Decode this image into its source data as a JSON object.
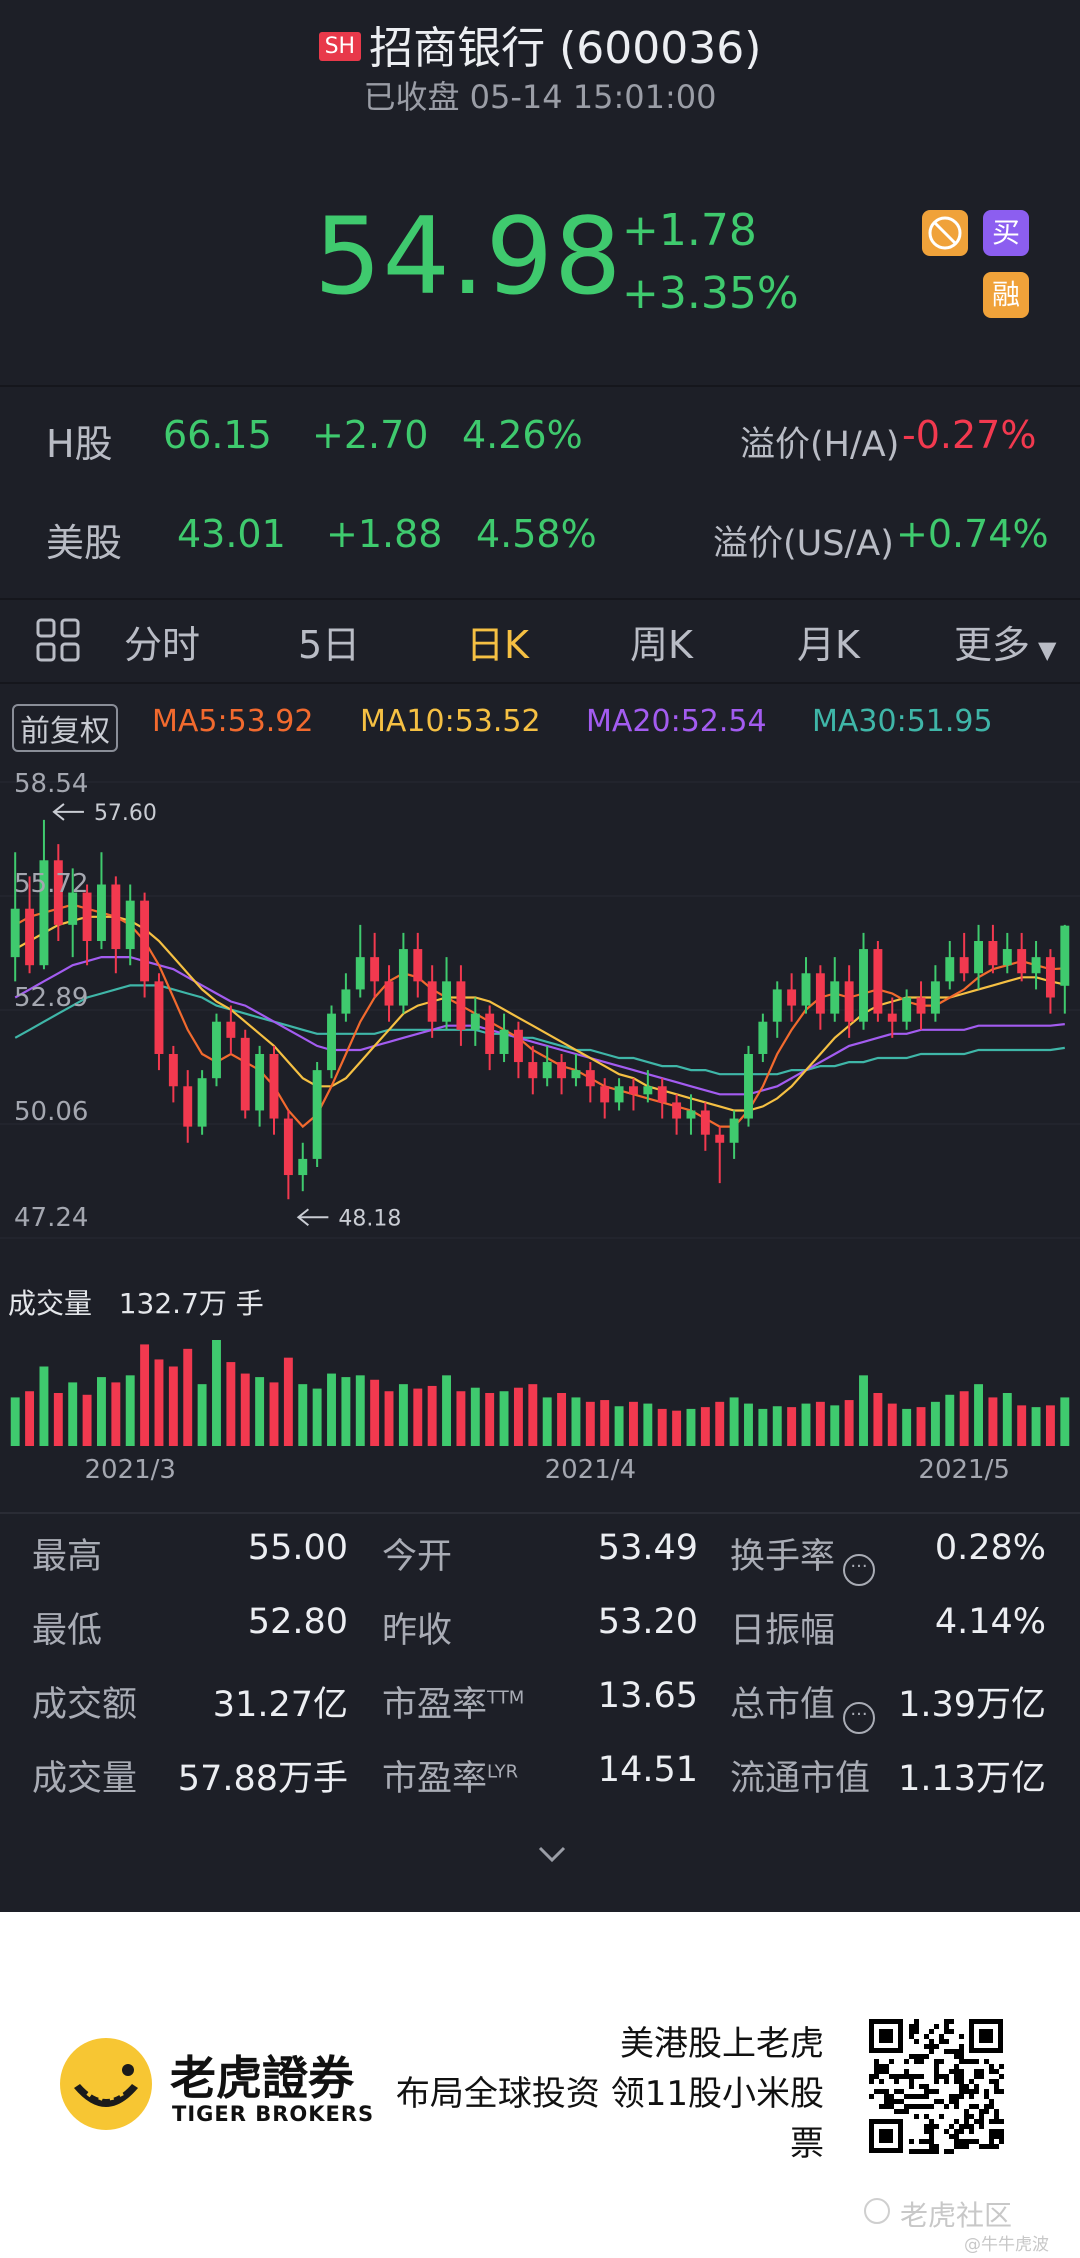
{
  "header": {
    "exchange_badge": "SH",
    "title": "招商银行 (600036)",
    "status": "已收盘 05-14 15:01:00",
    "price": "54.98",
    "change": "+1.78",
    "change_pct": "+3.35%",
    "buttons": {
      "no_short": "空",
      "buy": "买",
      "margin": "融"
    }
  },
  "linked": [
    {
      "market": "H股",
      "price": "66.15",
      "change": "+2.70",
      "pct": "4.26%",
      "premium_label": "溢价(H/A)",
      "premium": "-0.27%"
    },
    {
      "market": "美股",
      "price": "43.01",
      "change": "+1.88",
      "pct": "4.58%",
      "premium_label": "溢价(US/A)",
      "premium": "+0.74%"
    }
  ],
  "tabs": {
    "intraday": "分时",
    "five_day": "5日",
    "daily": "日K",
    "weekly": "周K",
    "monthly": "月K",
    "more": "更多"
  },
  "ma": {
    "adjust": "前复权",
    "ma5": "MA5:53.92",
    "ma10": "MA10:53.52",
    "ma20": "MA20:52.54",
    "ma30": "MA30:51.95",
    "colors": {
      "ma5": "#f26a2e",
      "ma10": "#f5c043",
      "ma20": "#a35cf0",
      "ma30": "#3fb6a8"
    }
  },
  "chart_data": {
    "type": "candlestick",
    "y_ticks": [
      "58.54",
      "55.72",
      "52.89",
      "50.06",
      "47.24"
    ],
    "ylim": [
      47.24,
      58.54
    ],
    "high_marker": "57.60",
    "low_marker": "48.18",
    "x_ticks": [
      "2021/3",
      "2021/4",
      "2021/5"
    ],
    "candles": [
      [
        54.2,
        55.4,
        56.8,
        53.6
      ],
      [
        55.4,
        54.0,
        56.2,
        53.8
      ],
      [
        54.0,
        56.6,
        57.6,
        53.9
      ],
      [
        56.6,
        55.0,
        57.0,
        54.6
      ],
      [
        55.0,
        55.8,
        56.4,
        54.2
      ],
      [
        55.8,
        54.6,
        56.0,
        54.0
      ],
      [
        54.6,
        56.0,
        56.8,
        54.4
      ],
      [
        56.0,
        54.4,
        56.2,
        53.8
      ],
      [
        54.4,
        55.6,
        56.0,
        54.0
      ],
      [
        55.6,
        53.6,
        55.8,
        53.2
      ],
      [
        53.6,
        51.8,
        53.8,
        51.4
      ],
      [
        51.8,
        51.0,
        52.0,
        50.6
      ],
      [
        51.0,
        50.0,
        51.4,
        49.6
      ],
      [
        50.0,
        51.2,
        51.4,
        49.8
      ],
      [
        51.2,
        52.6,
        52.8,
        51.0
      ],
      [
        52.6,
        52.2,
        53.0,
        51.8
      ],
      [
        52.2,
        50.4,
        52.4,
        50.2
      ],
      [
        50.4,
        51.8,
        52.0,
        50.0
      ],
      [
        51.8,
        50.2,
        52.0,
        49.8
      ],
      [
        50.2,
        48.8,
        50.4,
        48.2
      ],
      [
        48.8,
        49.2,
        49.6,
        48.4
      ],
      [
        49.2,
        51.4,
        51.6,
        49.0
      ],
      [
        51.4,
        52.8,
        53.0,
        51.2
      ],
      [
        52.8,
        53.4,
        53.8,
        52.6
      ],
      [
        53.4,
        54.2,
        55.0,
        53.2
      ],
      [
        54.2,
        53.6,
        54.8,
        53.2
      ],
      [
        53.6,
        53.0,
        54.0,
        52.6
      ],
      [
        53.0,
        54.4,
        54.8,
        52.8
      ],
      [
        54.4,
        53.6,
        54.8,
        53.2
      ],
      [
        53.6,
        52.6,
        54.0,
        52.2
      ],
      [
        52.6,
        53.6,
        54.2,
        52.4
      ],
      [
        53.6,
        52.4,
        54.0,
        52.0
      ],
      [
        52.4,
        52.8,
        53.2,
        52.0
      ],
      [
        52.8,
        51.8,
        53.0,
        51.4
      ],
      [
        51.8,
        52.4,
        52.8,
        51.6
      ],
      [
        52.4,
        51.6,
        52.6,
        51.2
      ],
      [
        51.6,
        51.2,
        52.0,
        50.8
      ],
      [
        51.2,
        51.6,
        52.0,
        51.0
      ],
      [
        51.6,
        51.2,
        51.8,
        50.8
      ],
      [
        51.2,
        51.4,
        51.8,
        51.0
      ],
      [
        51.4,
        51.0,
        51.6,
        50.6
      ],
      [
        51.0,
        50.6,
        51.2,
        50.2
      ],
      [
        50.6,
        51.0,
        51.2,
        50.4
      ],
      [
        51.0,
        50.8,
        51.2,
        50.4
      ],
      [
        50.8,
        51.0,
        51.4,
        50.6
      ],
      [
        51.0,
        50.6,
        51.2,
        50.2
      ],
      [
        50.6,
        50.2,
        50.8,
        49.8
      ],
      [
        50.2,
        50.4,
        50.8,
        49.8
      ],
      [
        50.4,
        49.8,
        50.6,
        49.4
      ],
      [
        49.8,
        49.6,
        50.0,
        48.6
      ],
      [
        49.6,
        50.2,
        50.4,
        49.2
      ],
      [
        50.2,
        51.8,
        52.0,
        50.0
      ],
      [
        51.8,
        52.6,
        52.8,
        51.6
      ],
      [
        52.6,
        53.4,
        53.6,
        52.2
      ],
      [
        53.4,
        53.0,
        53.8,
        52.6
      ],
      [
        53.0,
        53.8,
        54.2,
        52.8
      ],
      [
        53.8,
        52.8,
        54.0,
        52.4
      ],
      [
        52.8,
        53.6,
        54.2,
        52.6
      ],
      [
        53.6,
        52.6,
        54.0,
        52.2
      ],
      [
        52.6,
        54.4,
        54.8,
        52.4
      ],
      [
        54.4,
        52.8,
        54.6,
        52.6
      ],
      [
        52.8,
        52.6,
        53.2,
        52.2
      ],
      [
        52.6,
        53.2,
        53.4,
        52.4
      ],
      [
        53.2,
        52.8,
        53.6,
        52.4
      ],
      [
        52.8,
        53.6,
        54.0,
        52.6
      ],
      [
        53.6,
        54.2,
        54.6,
        53.4
      ],
      [
        54.2,
        53.8,
        54.8,
        53.6
      ],
      [
        53.8,
        54.6,
        55.0,
        53.4
      ],
      [
        54.6,
        54.0,
        55.0,
        53.8
      ],
      [
        54.0,
        54.4,
        54.8,
        53.8
      ],
      [
        54.4,
        53.8,
        54.8,
        53.6
      ],
      [
        53.8,
        54.2,
        54.6,
        53.4
      ],
      [
        54.2,
        53.2,
        54.4,
        52.8
      ],
      [
        53.49,
        54.98,
        55.0,
        52.8
      ]
    ],
    "ma5": [
      55.0,
      55.2,
      55.3,
      55.4,
      55.5,
      55.4,
      55.3,
      55.2,
      55.0,
      54.6,
      54.0,
      53.2,
      52.4,
      51.8,
      51.6,
      51.8,
      51.6,
      51.4,
      51.0,
      50.4,
      50.0,
      50.3,
      51.0,
      51.8,
      52.6,
      53.2,
      53.6,
      53.8,
      53.7,
      53.4,
      53.2,
      53.0,
      52.8,
      52.6,
      52.4,
      52.2,
      51.9,
      51.7,
      51.5,
      51.4,
      51.2,
      51.0,
      50.9,
      50.8,
      50.7,
      50.6,
      50.5,
      50.4,
      50.2,
      50.0,
      50.0,
      50.4,
      51.0,
      51.8,
      52.4,
      52.9,
      53.2,
      53.3,
      53.2,
      53.3,
      53.4,
      53.3,
      53.1,
      53.0,
      53.0,
      53.2,
      53.4,
      53.7,
      53.9,
      54.0,
      54.1,
      54.0,
      53.9,
      53.92
    ],
    "ma10": [
      54.4,
      54.6,
      54.8,
      55.0,
      55.1,
      55.2,
      55.2,
      55.2,
      55.1,
      54.9,
      54.6,
      54.2,
      53.8,
      53.4,
      53.1,
      52.9,
      52.6,
      52.3,
      52.0,
      51.6,
      51.2,
      51.0,
      51.0,
      51.2,
      51.6,
      52.0,
      52.4,
      52.8,
      53.0,
      53.1,
      53.2,
      53.2,
      53.2,
      53.1,
      52.9,
      52.7,
      52.5,
      52.3,
      52.1,
      51.9,
      51.7,
      51.5,
      51.3,
      51.2,
      51.0,
      50.9,
      50.8,
      50.7,
      50.6,
      50.5,
      50.4,
      50.4,
      50.5,
      50.7,
      51.0,
      51.4,
      51.8,
      52.2,
      52.5,
      52.8,
      53.0,
      53.1,
      53.2,
      53.2,
      53.2,
      53.2,
      53.3,
      53.4,
      53.5,
      53.6,
      53.7,
      53.7,
      53.6,
      53.52
    ],
    "ma20": [
      53.2,
      53.4,
      53.6,
      53.8,
      54.0,
      54.1,
      54.2,
      54.2,
      54.2,
      54.1,
      54.0,
      53.9,
      53.7,
      53.5,
      53.3,
      53.1,
      53.0,
      52.8,
      52.6,
      52.4,
      52.2,
      52.0,
      51.9,
      51.9,
      51.9,
      52.0,
      52.1,
      52.2,
      52.3,
      52.4,
      52.5,
      52.5,
      52.5,
      52.4,
      52.3,
      52.2,
      52.1,
      52.0,
      51.9,
      51.8,
      51.7,
      51.6,
      51.5,
      51.4,
      51.3,
      51.2,
      51.1,
      51.0,
      50.9,
      50.8,
      50.8,
      50.8,
      50.9,
      51.0,
      51.2,
      51.4,
      51.6,
      51.8,
      52.0,
      52.1,
      52.2,
      52.3,
      52.3,
      52.4,
      52.4,
      52.4,
      52.4,
      52.5,
      52.5,
      52.5,
      52.5,
      52.5,
      52.5,
      52.54
    ],
    "ma30": [
      52.2,
      52.4,
      52.6,
      52.8,
      53.0,
      53.2,
      53.3,
      53.4,
      53.5,
      53.5,
      53.5,
      53.4,
      53.3,
      53.2,
      53.0,
      52.9,
      52.8,
      52.7,
      52.6,
      52.5,
      52.4,
      52.3,
      52.3,
      52.3,
      52.3,
      52.3,
      52.4,
      52.4,
      52.4,
      52.4,
      52.4,
      52.4,
      52.4,
      52.3,
      52.3,
      52.2,
      52.2,
      52.1,
      52.0,
      51.9,
      51.9,
      51.8,
      51.7,
      51.7,
      51.6,
      51.5,
      51.5,
      51.4,
      51.4,
      51.3,
      51.3,
      51.3,
      51.3,
      51.3,
      51.4,
      51.4,
      51.5,
      51.5,
      51.6,
      51.6,
      51.7,
      51.7,
      51.7,
      51.8,
      51.8,
      51.8,
      51.8,
      51.9,
      51.9,
      51.9,
      51.9,
      51.9,
      51.9,
      51.95
    ],
    "volume": [
      0.55,
      0.62,
      0.9,
      0.6,
      0.72,
      0.58,
      0.78,
      0.72,
      0.8,
      1.15,
      0.98,
      0.9,
      1.1,
      0.7,
      1.2,
      0.95,
      0.82,
      0.78,
      0.72,
      1.0,
      0.7,
      0.65,
      0.82,
      0.78,
      0.8,
      0.75,
      0.62,
      0.7,
      0.65,
      0.68,
      0.8,
      0.62,
      0.66,
      0.6,
      0.62,
      0.66,
      0.7,
      0.55,
      0.6,
      0.55,
      0.5,
      0.52,
      0.45,
      0.5,
      0.48,
      0.42,
      0.4,
      0.42,
      0.44,
      0.5,
      0.55,
      0.48,
      0.42,
      0.45,
      0.44,
      0.48,
      0.5,
      0.46,
      0.52,
      0.8,
      0.6,
      0.48,
      0.42,
      0.44,
      0.5,
      0.58,
      0.62,
      0.7,
      0.55,
      0.6,
      0.46,
      0.44,
      0.46,
      0.55
    ]
  },
  "volume_label": {
    "name": "成交量",
    "value": "132.7万 手"
  },
  "stats": [
    {
      "label": "最高",
      "value": "55.00"
    },
    {
      "label": "今开",
      "value": "53.49"
    },
    {
      "label": "换手率",
      "value": "0.28%"
    },
    {
      "label": "最低",
      "value": "52.80"
    },
    {
      "label": "昨收",
      "value": "53.20"
    },
    {
      "label": "日振幅",
      "value": "4.14%"
    },
    {
      "label": "成交额",
      "value": "31.27亿"
    },
    {
      "label": "市盈率",
      "sup": "TTM",
      "value": "13.65"
    },
    {
      "label": "总市值",
      "value": "1.39万亿"
    },
    {
      "label": "成交量",
      "value": "57.88万手"
    },
    {
      "label": "市盈率",
      "sup": "LYR",
      "value": "14.51"
    },
    {
      "label": "流通市值",
      "value": "1.13万亿"
    }
  ],
  "footer": {
    "brand_cn": "老虎證券",
    "brand_en": "TIGER BROKERS",
    "slogan1": "美港股上老虎",
    "slogan2": "布局全球投资 领11股小米股",
    "slogan3": "票",
    "watermark1": "老虎社区",
    "watermark2": "@牛牛虎波"
  }
}
